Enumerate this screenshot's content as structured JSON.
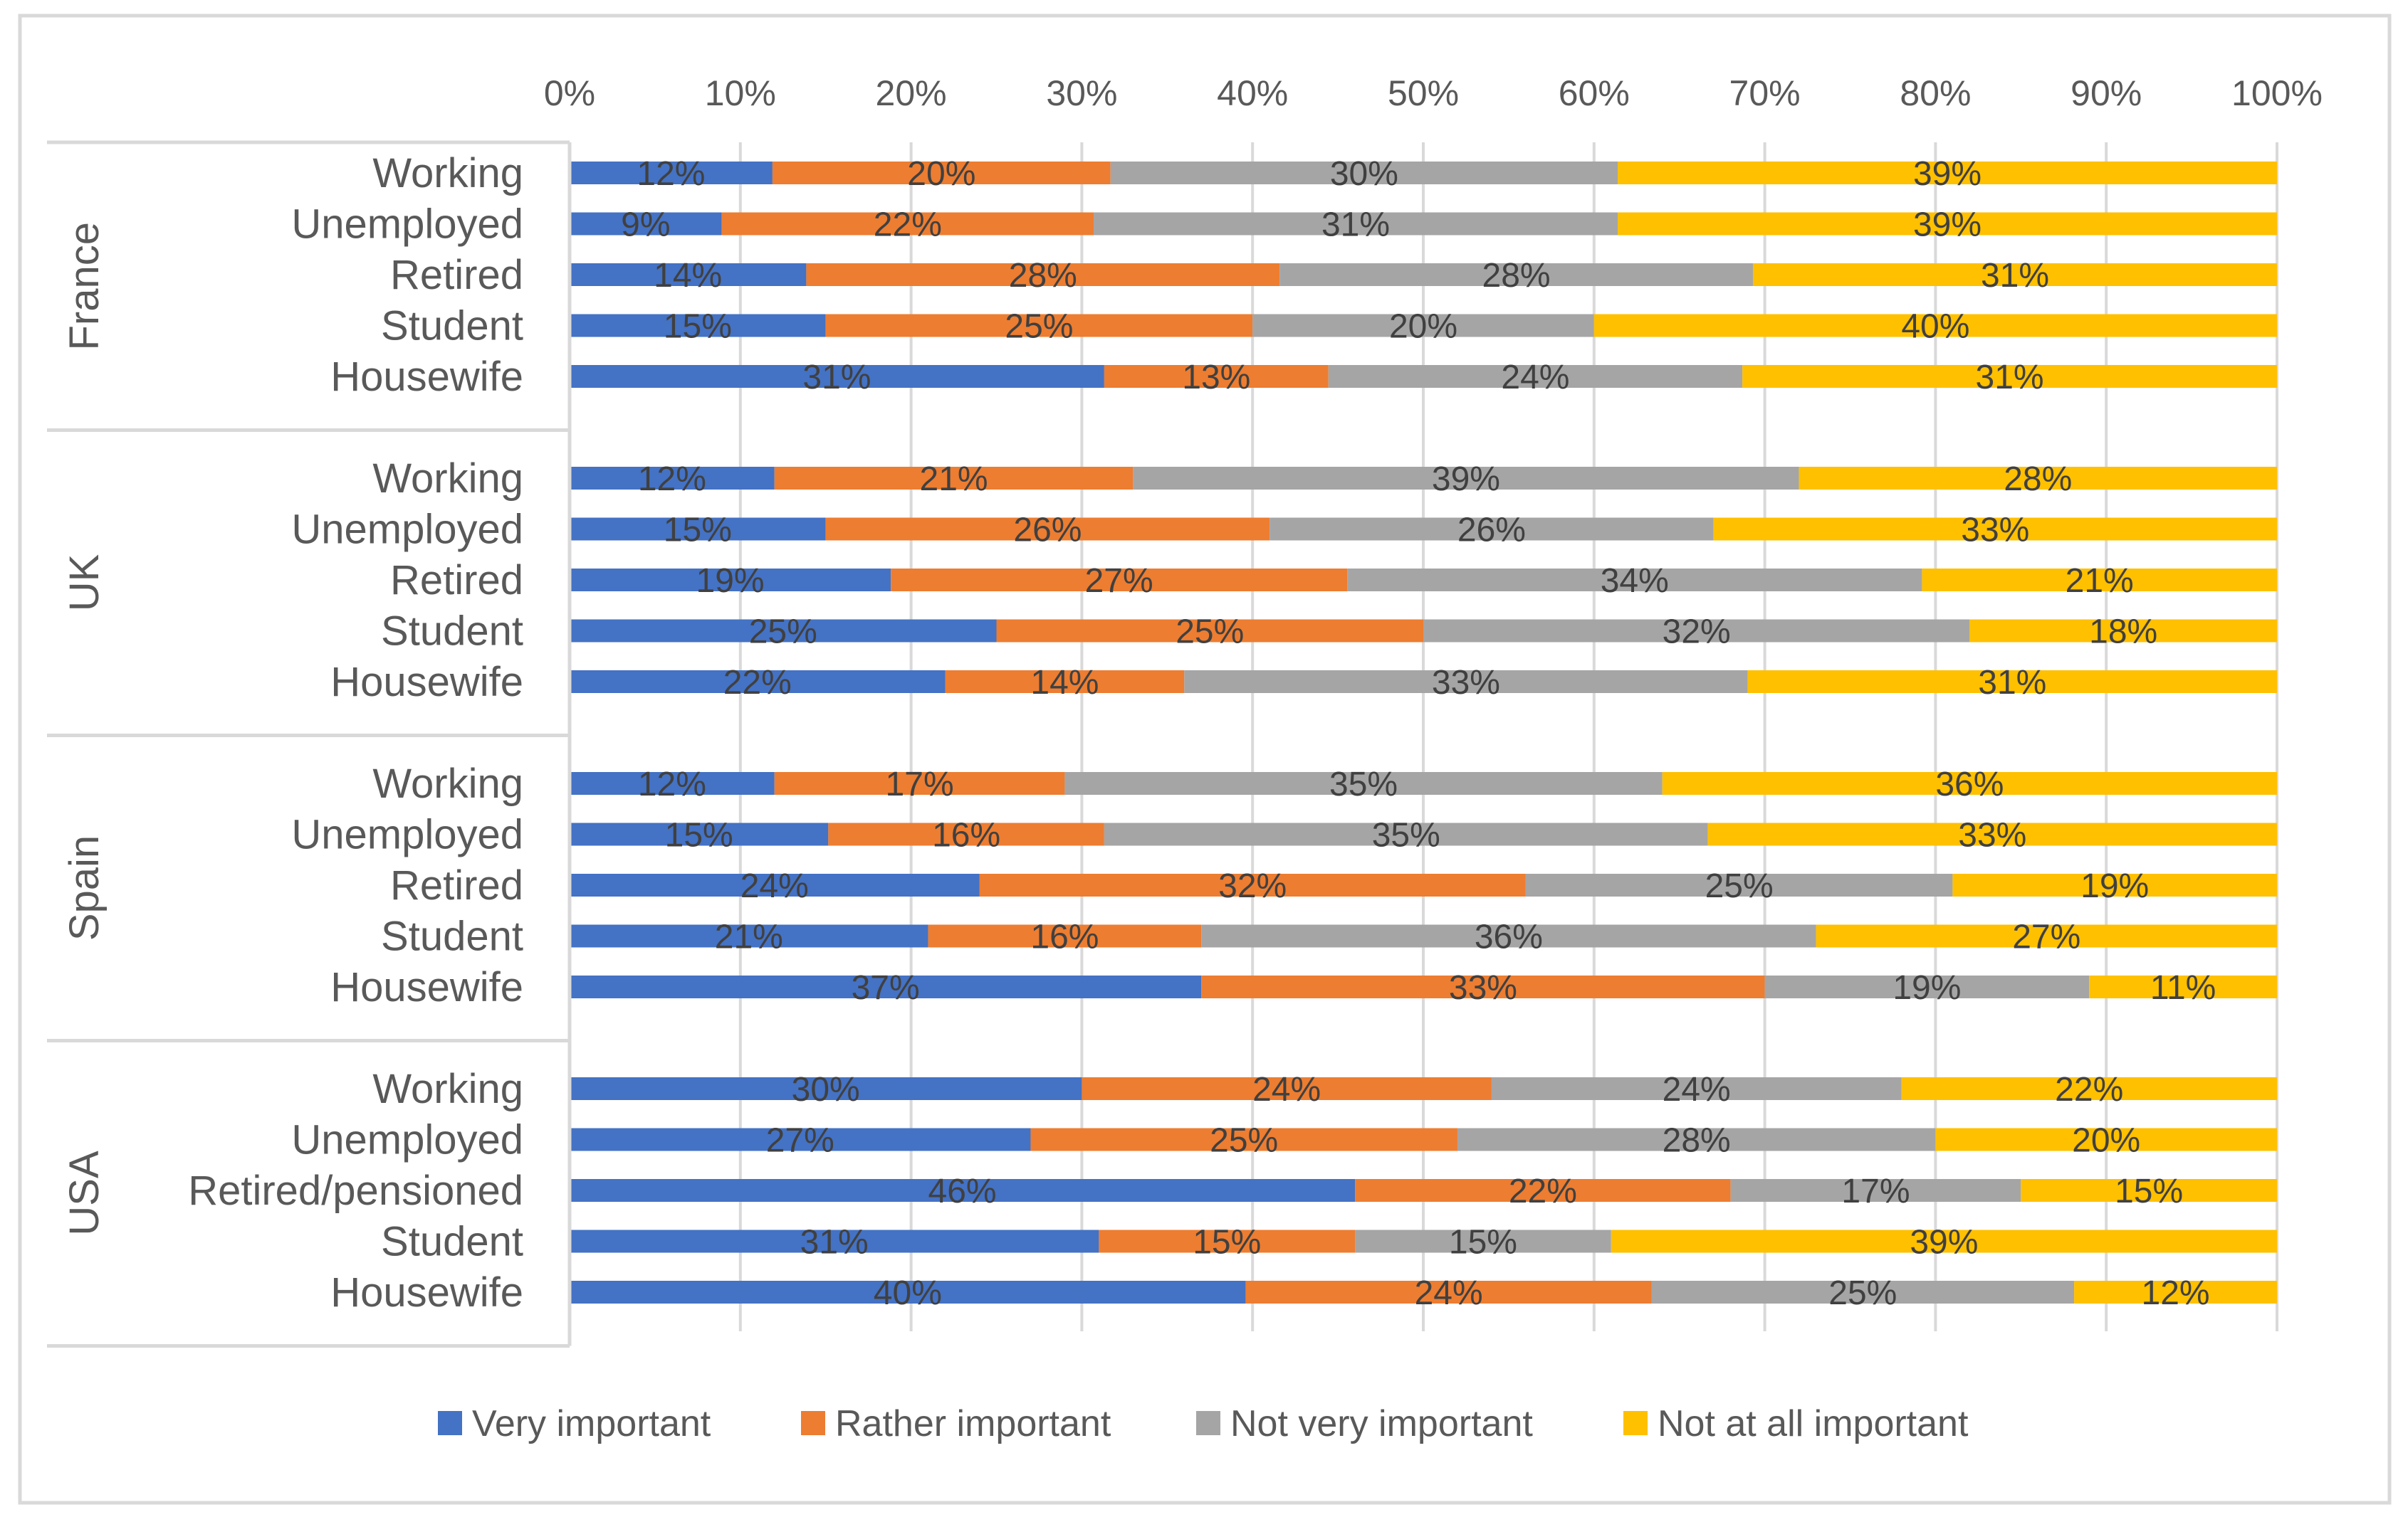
{
  "chart_data": {
    "type": "bar",
    "orientation": "horizontal",
    "stacked": "percent",
    "title": "",
    "xlabel": "",
    "ylabel": "",
    "xlim": [
      0,
      100
    ],
    "x_ticks": [
      "0%",
      "10%",
      "20%",
      "30%",
      "40%",
      "50%",
      "60%",
      "70%",
      "80%",
      "90%",
      "100%"
    ],
    "grid": true,
    "legend_position": "bottom",
    "series_names": [
      "Very important",
      "Rather important",
      "Not very important",
      "Not at all important"
    ],
    "colors": [
      "#4472c4",
      "#ed7d31",
      "#a5a5a5",
      "#ffc000"
    ],
    "groups": [
      {
        "name": "France",
        "rows": [
          {
            "label": "Working",
            "values": [
              12,
              20,
              30,
              39
            ],
            "labels": [
              "12%",
              "20%",
              "30%",
              "39%"
            ]
          },
          {
            "label": "Unemployed",
            "values": [
              9,
              22,
              31,
              39
            ],
            "labels": [
              "9%",
              "22%",
              "31%",
              "39%"
            ]
          },
          {
            "label": "Retired",
            "values": [
              14,
              28,
              28,
              31
            ],
            "labels": [
              "14%",
              "28%",
              "28%",
              "31%"
            ]
          },
          {
            "label": "Student",
            "values": [
              15,
              25,
              20,
              40
            ],
            "labels": [
              "15%",
              "25%",
              "20%",
              "40%"
            ]
          },
          {
            "label": "Housewife",
            "values": [
              31,
              13,
              24,
              31
            ],
            "labels": [
              "31%",
              "13%",
              "24%",
              "31%"
            ]
          }
        ]
      },
      {
        "name": "UK",
        "rows": [
          {
            "label": "Working",
            "values": [
              12,
              21,
              39,
              28
            ],
            "labels": [
              "12%",
              "21%",
              "39%",
              "28%"
            ]
          },
          {
            "label": "Unemployed",
            "values": [
              15,
              26,
              26,
              33
            ],
            "labels": [
              "15%",
              "26%",
              "26%",
              "33%"
            ]
          },
          {
            "label": "Retired",
            "values": [
              19,
              27,
              34,
              21
            ],
            "labels": [
              "19%",
              "27%",
              "34%",
              "21%"
            ]
          },
          {
            "label": "Student",
            "values": [
              25,
              25,
              32,
              18
            ],
            "labels": [
              "25%",
              "25%",
              "32%",
              "18%"
            ]
          },
          {
            "label": "Housewife",
            "values": [
              22,
              14,
              33,
              31
            ],
            "labels": [
              "22%",
              "14%",
              "33%",
              "31%"
            ]
          }
        ]
      },
      {
        "name": "Spain",
        "rows": [
          {
            "label": "Working",
            "values": [
              12,
              17,
              35,
              36
            ],
            "labels": [
              "12%",
              "17%",
              "35%",
              "36%"
            ]
          },
          {
            "label": "Unemployed",
            "values": [
              15,
              16,
              35,
              33
            ],
            "labels": [
              "15%",
              "16%",
              "35%",
              "33%"
            ]
          },
          {
            "label": "Retired",
            "values": [
              24,
              32,
              25,
              19
            ],
            "labels": [
              "24%",
              "32%",
              "25%",
              "19%"
            ]
          },
          {
            "label": "Student",
            "values": [
              21,
              16,
              36,
              27
            ],
            "labels": [
              "21%",
              "16%",
              "36%",
              "27%"
            ]
          },
          {
            "label": "Housewife",
            "values": [
              37,
              33,
              19,
              11
            ],
            "labels": [
              "37%",
              "33%",
              "19%",
              "11%"
            ]
          }
        ]
      },
      {
        "name": "USA",
        "rows": [
          {
            "label": "Working",
            "values": [
              30,
              24,
              24,
              22
            ],
            "labels": [
              "30%",
              "24%",
              "24%",
              "22%"
            ]
          },
          {
            "label": "Unemployed",
            "values": [
              27,
              25,
              28,
              20
            ],
            "labels": [
              "27%",
              "25%",
              "28%",
              "20%"
            ]
          },
          {
            "label": "Retired/pensioned",
            "values": [
              46,
              22,
              17,
              15
            ],
            "labels": [
              "46%",
              "22%",
              "17%",
              "15%"
            ]
          },
          {
            "label": "Student",
            "values": [
              31,
              15,
              15,
              39
            ],
            "labels": [
              "31%",
              "15%",
              "15%",
              "39%"
            ]
          },
          {
            "label": "Housewife",
            "values": [
              40,
              24,
              25,
              12
            ],
            "labels": [
              "40%",
              "24%",
              "25%",
              "12%"
            ]
          }
        ]
      }
    ]
  }
}
